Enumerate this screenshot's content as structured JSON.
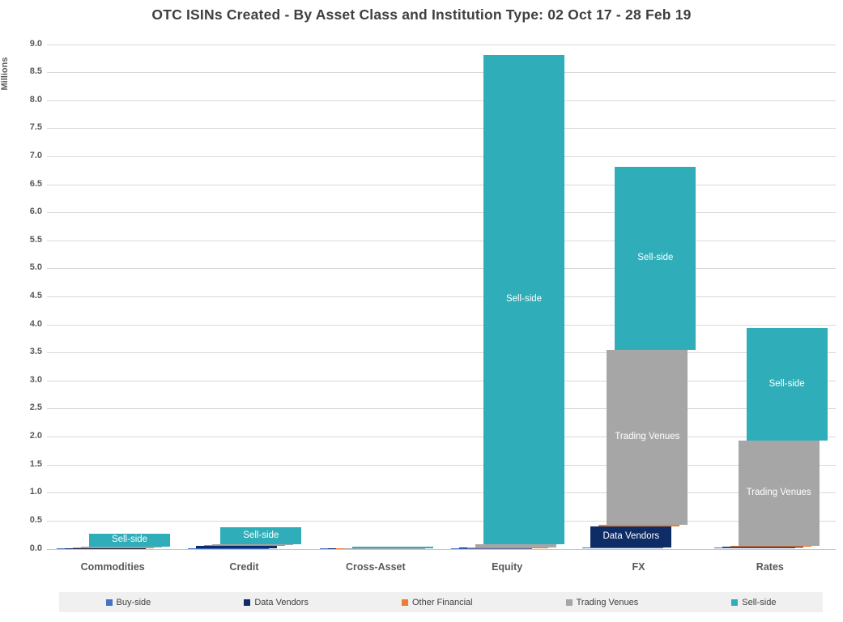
{
  "title": "OTC ISINs Created - By Asset Class and Institution Type: 02 Oct 17 - 28 Feb 19",
  "colors": {
    "buy_side": "#4472C4",
    "data_vendors": "#0E2C66",
    "other_financial": "#ED7D31",
    "trading_venues": "#A6A6A6",
    "sell_side": "#2FAEB9",
    "gridline": "#D9D9D9",
    "axis_text": "#595959",
    "title_text": "#3F3F3F",
    "legend_background": "#F0F0F0",
    "bar_label_text": "#FFFFFF"
  },
  "chart_data": {
    "type": "bar",
    "stacked": true,
    "title": "OTC ISINs Created - By Asset Class and Institution Type: 02 Oct 17 - 28 Feb 19",
    "ylabel": "Millions",
    "xlabel": "",
    "ylim": [
      0,
      9
    ],
    "ytick_step": 0.5,
    "grid": true,
    "legend_position": "bottom",
    "categories": [
      "Commodities",
      "Credit",
      "Cross-Asset",
      "Equity",
      "FX",
      "Rates"
    ],
    "series": [
      {
        "name": "Buy-side",
        "color": "#4472C4",
        "values": [
          0.01,
          0.01,
          0.004,
          0.01,
          0.02,
          0.02
        ]
      },
      {
        "name": "Data Vendors",
        "color": "#0E2C66",
        "values": [
          0.003,
          0.045,
          0.002,
          0.012,
          0.38,
          0.015
        ]
      },
      {
        "name": "Other Financial",
        "color": "#ED7D31",
        "values": [
          0.012,
          0.005,
          0.002,
          0.003,
          0.02,
          0.01
        ]
      },
      {
        "name": "Trading Venues",
        "color": "#A6A6A6",
        "values": [
          0.015,
          0.015,
          0.004,
          0.055,
          3.13,
          1.885
        ]
      },
      {
        "name": "Sell-side",
        "color": "#2FAEB9",
        "values": [
          0.225,
          0.305,
          0.018,
          8.73,
          3.26,
          2.01
        ]
      }
    ],
    "totals": [
      0.265,
      0.38,
      0.03,
      8.81,
      6.81,
      3.94
    ],
    "bar_labels": [
      {
        "category": "Commodities",
        "series": "Sell-side",
        "text": "Sell-side"
      },
      {
        "category": "Credit",
        "series": "Sell-side",
        "text": "Sell-side"
      },
      {
        "category": "Equity",
        "series": "Sell-side",
        "text": "Sell-side"
      },
      {
        "category": "FX",
        "series": "Data Vendors",
        "text": "Data Vendors"
      },
      {
        "category": "FX",
        "series": "Trading Venues",
        "text": "Trading Venues"
      },
      {
        "category": "FX",
        "series": "Sell-side",
        "text": "Sell-side"
      },
      {
        "category": "Rates",
        "series": "Trading Venues",
        "text": "Trading Venues"
      },
      {
        "category": "Rates",
        "series": "Sell-side",
        "text": "Sell-side"
      }
    ],
    "legend": [
      "Buy-side",
      "Data Vendors",
      "Other Financial",
      "Trading Venues",
      "Sell-side"
    ]
  }
}
